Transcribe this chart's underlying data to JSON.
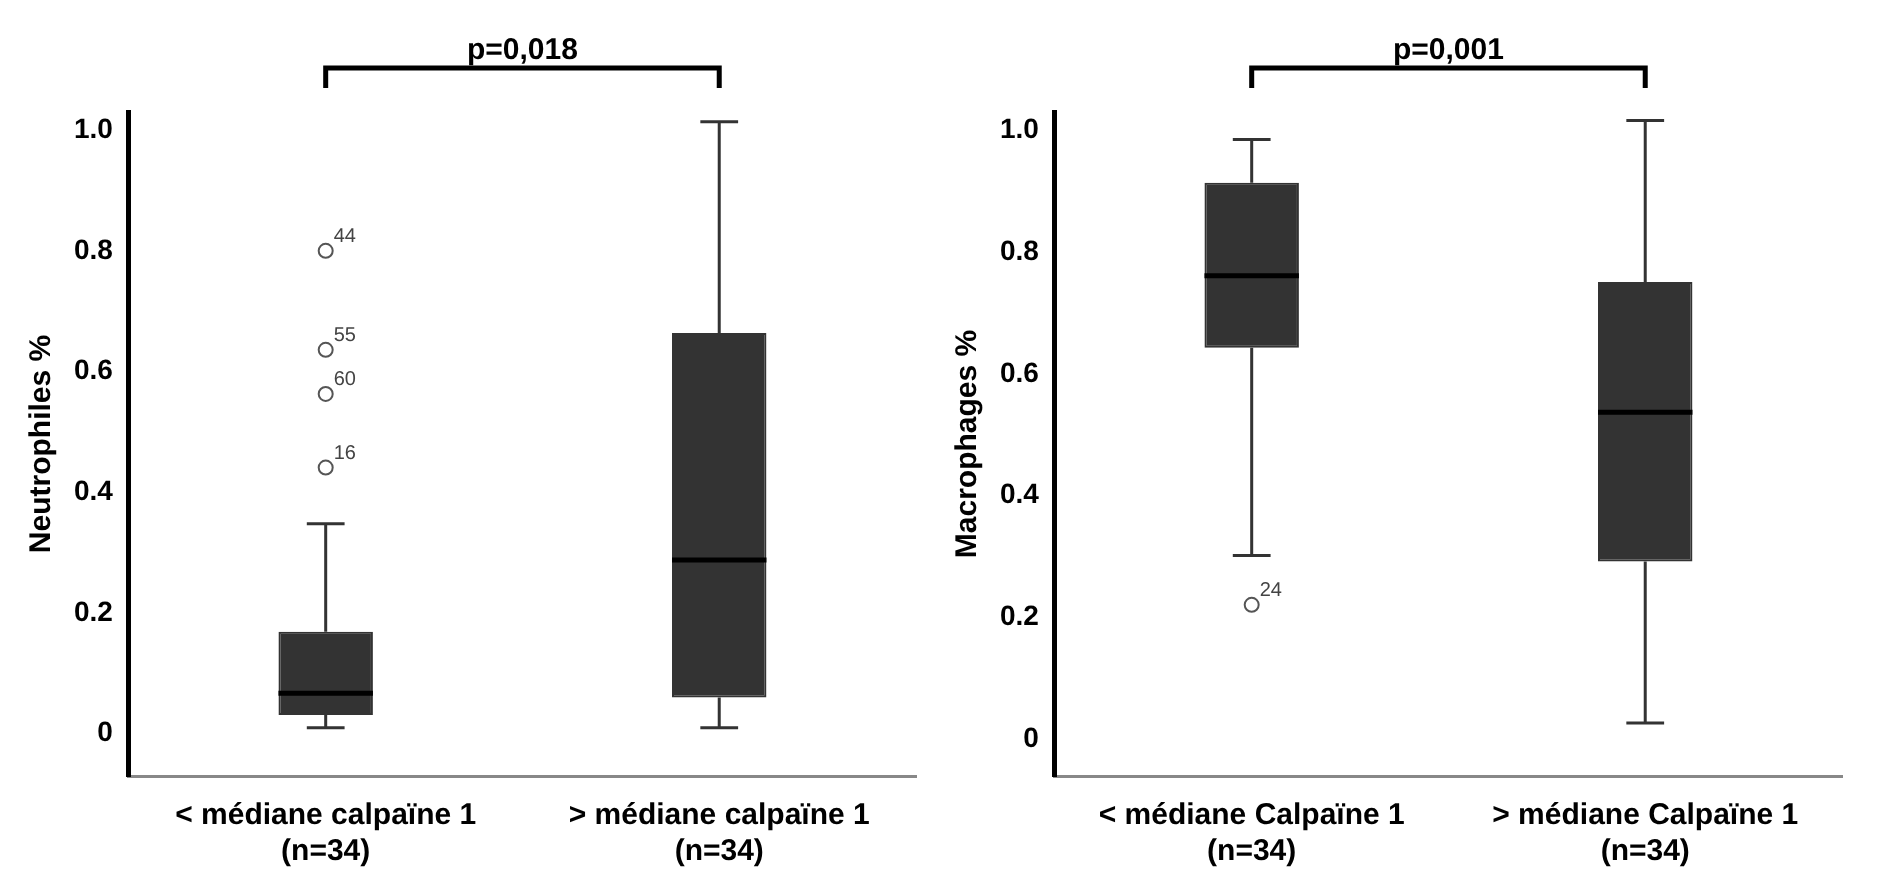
{
  "chart_data": [
    {
      "type": "box",
      "ylabel": "Neutrophiles %",
      "categories": [
        "< médiane calpaïne 1\n(n=34)",
        "> médiane calpaïne 1\n(n=34)"
      ],
      "series": [
        {
          "color": "#333333",
          "boxes": [
            {
              "low": 0.01,
              "q1": 0.031,
              "median": 0.067,
              "q3": 0.169,
              "high": 0.348,
              "outliers": [
                0.8,
                0.636,
                0.563,
                0.441
              ]
            },
            {
              "low": 0.01,
              "q1": 0.06,
              "median": 0.288,
              "q3": 0.664,
              "high": 1.014
            }
          ]
        }
      ],
      "ylim": [
        -0.07,
        1.03
      ],
      "yticks": [
        0,
        0.2,
        0.4,
        0.6,
        0.8,
        {
          "value": 1,
          "label": "1.0"
        }
      ],
      "grid": false,
      "annotations": [
        "p=0,018",
        "44",
        "55",
        "60",
        "16"
      ]
    },
    {
      "type": "box",
      "ylabel": "Macrophages %",
      "categories": [
        "< médiane Calpaïne 1\n(n=34)",
        "> médiane Calpaïne 1\n(n=34)"
      ],
      "series": [
        {
          "color": "#333333",
          "boxes": [
            {
              "low": 0.302,
              "q1": 0.643,
              "median": 0.761,
              "q3": 0.914,
              "high": 0.985,
              "outliers": [
                0.221
              ]
            },
            {
              "low": 0.027,
              "q1": 0.292,
              "median": 0.537,
              "q3": 0.751,
              "high": 1.016
            }
          ]
        }
      ],
      "ylim": [
        -0.06,
        1.03
      ],
      "yticks": [
        0,
        0.2,
        0.4,
        0.6,
        0.8,
        {
          "value": 1,
          "label": "1.0"
        }
      ],
      "grid": false,
      "annotations": [
        "p=0,001",
        "24"
      ]
    }
  ]
}
